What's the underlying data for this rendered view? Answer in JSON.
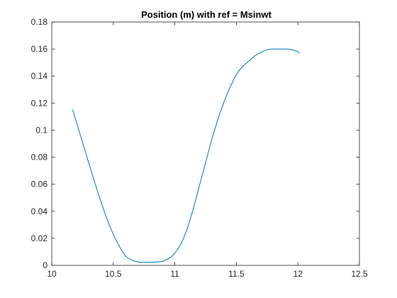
{
  "chart_data": {
    "type": "line",
    "title": "Position (m) with ref = Msinwt",
    "xlabel": "",
    "ylabel": "",
    "xlim": [
      10,
      12.5
    ],
    "ylim": [
      0,
      0.18
    ],
    "xticks": [
      10,
      10.5,
      11,
      11.5,
      12,
      12.5
    ],
    "yticks": [
      0,
      0.02,
      0.04,
      0.06,
      0.08,
      0.1,
      0.12,
      0.14,
      0.16,
      0.18
    ],
    "xtick_labels": [
      "10",
      "10.5",
      "11",
      "11.5",
      "12",
      "12.5"
    ],
    "ytick_labels": [
      "0",
      "0.02",
      "0.04",
      "0.06",
      "0.08",
      "0.1",
      "0.12",
      "0.14",
      "0.16",
      "0.18"
    ],
    "grid": false,
    "box": true,
    "series": [
      {
        "color": "#0072BD",
        "x": [
          10.17,
          10.2,
          10.25,
          10.3,
          10.35,
          10.4,
          10.45,
          10.5,
          10.55,
          10.6,
          10.65,
          10.7,
          10.75,
          10.8,
          10.85,
          10.9,
          10.95,
          11.0,
          11.05,
          11.1,
          11.15,
          11.2,
          11.25,
          11.3,
          11.35,
          11.4,
          11.45,
          11.5,
          11.55,
          11.6,
          11.65,
          11.7,
          11.75,
          11.8,
          11.85,
          11.9,
          11.95,
          12.0,
          12.01
        ],
        "y": [
          0.115,
          0.106,
          0.091,
          0.076,
          0.061,
          0.047,
          0.034,
          0.023,
          0.014,
          0.007,
          0.004,
          0.0025,
          0.0023,
          0.0023,
          0.0025,
          0.003,
          0.005,
          0.009,
          0.016,
          0.027,
          0.042,
          0.059,
          0.076,
          0.093,
          0.108,
          0.121,
          0.132,
          0.141,
          0.147,
          0.151,
          0.155,
          0.1575,
          0.1595,
          0.16,
          0.16,
          0.16,
          0.1595,
          0.158,
          0.157
        ]
      }
    ]
  }
}
